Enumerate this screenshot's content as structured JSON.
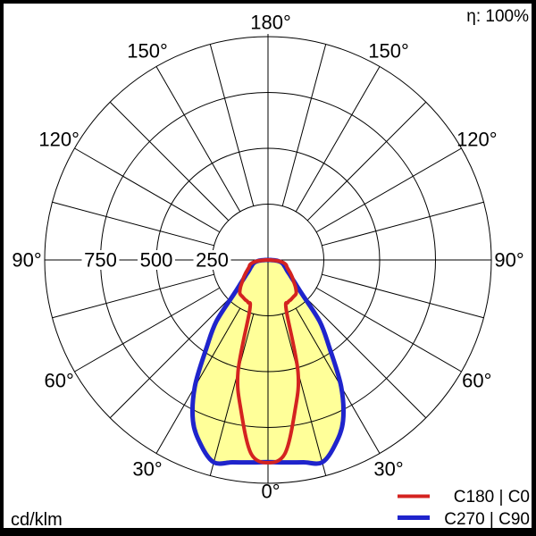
{
  "header": {
    "efficiency": "η: 100%"
  },
  "footer": {
    "unit": "cd/klm"
  },
  "legend": [
    {
      "label": "C180 | C0",
      "color": "#d42320",
      "line_width": 4
    },
    {
      "label": "C270 | C90",
      "color": "#1f24cc",
      "line_width": 5
    }
  ],
  "chart_data": {
    "type": "polar-photometric-intensity",
    "unit": "cd/klm",
    "efficiency_label": "η: 100%",
    "symmetry": "values mirrored about the 0°–180° axis",
    "angles_deg": [
      0,
      5,
      10,
      15,
      20,
      25,
      30,
      35,
      40,
      45,
      50,
      55,
      60,
      65,
      70,
      75,
      80,
      85,
      90
    ],
    "series": [
      {
        "name": "C180 | C0",
        "plane": "C180/C0",
        "color": "#d42320",
        "values": [
          908,
          870,
          690,
          520,
          240,
          210,
          205,
          200,
          196,
          175,
          150,
          132,
          115,
          100,
          90,
          84,
          70,
          45,
          10
        ]
      },
      {
        "name": "C270 | C90",
        "plane": "C270/C90",
        "color": "#1f24cc",
        "values": [
          905,
          910,
          920,
          938,
          880,
          795,
          655,
          480,
          360,
          215,
          155,
          122,
          100,
          88,
          78,
          70,
          60,
          42,
          12
        ]
      }
    ],
    "radial_rings": [
      250,
      500,
      750,
      1000
    ],
    "radial_tick_labels": [
      "750",
      "500",
      "250"
    ],
    "radial_tick_values": [
      750,
      500,
      250
    ],
    "radial_max": 1000,
    "angle_grid_step_deg": 15,
    "angle_tick_labels": [
      "0°",
      "30°",
      "60°",
      "90°",
      "120°",
      "150°",
      "180°"
    ],
    "fill_color": "#ffff99",
    "grid_color": "#000000",
    "legend_position": "bottom-right"
  }
}
